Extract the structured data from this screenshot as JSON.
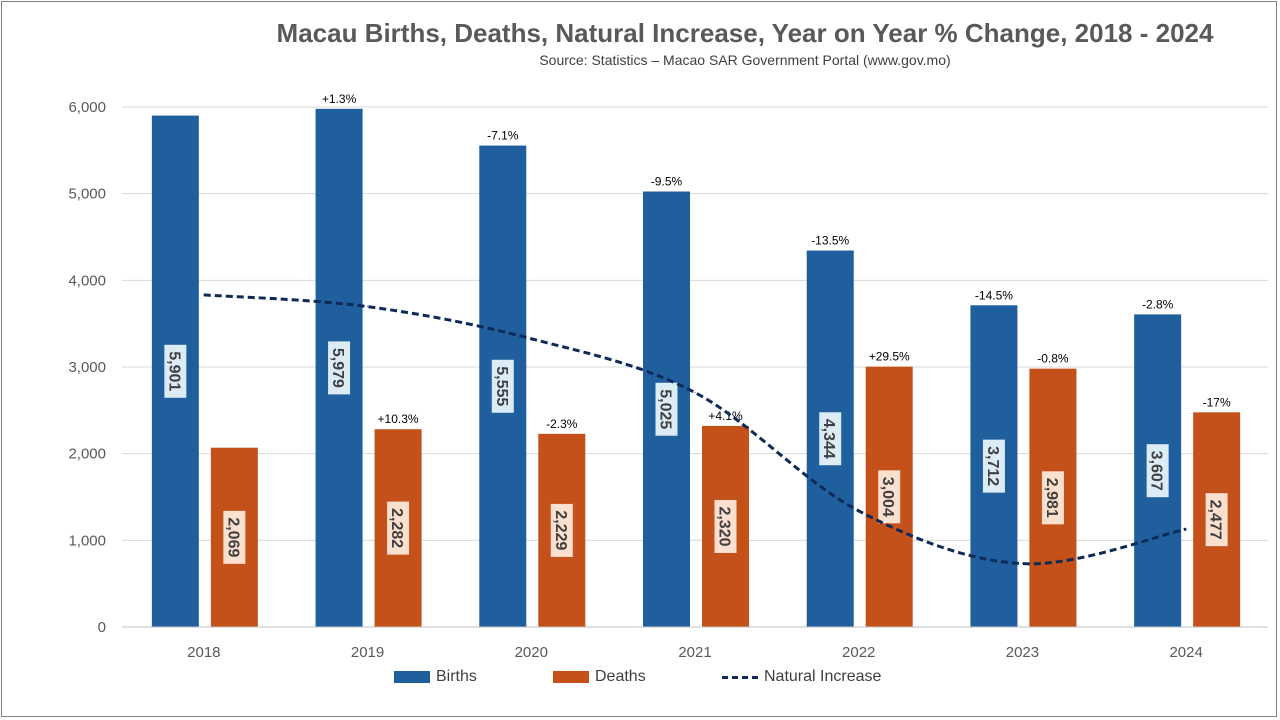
{
  "chart_data": {
    "type": "bar",
    "title": "Macau Births, Deaths, Natural Increase, Year on Year % Change, 2018 - 2024",
    "subtitle": "Source: Statistics – Macao SAR Government Portal (www.gov.mo)",
    "categories": [
      "2018",
      "2019",
      "2020",
      "2021",
      "2022",
      "2023",
      "2024"
    ],
    "ylim": [
      0,
      6000
    ],
    "yticks": [
      "0",
      "1,000",
      "2,000",
      "3,000",
      "4,000",
      "5,000",
      "6,000"
    ],
    "legend_position": "bottom",
    "grid": true,
    "series": [
      {
        "name": "Births",
        "type": "bar",
        "color": "#1f5f9e",
        "values": [
          5901,
          5979,
          5555,
          5025,
          4344,
          3712,
          3607
        ],
        "labels": [
          "5,901",
          "5,979",
          "5,555",
          "5,025",
          "4,344",
          "3,712",
          "3,607"
        ],
        "yoy": [
          "",
          "+1.3%",
          "-7.1%",
          "-9.5%",
          "-13.5%",
          "-14.5%",
          "-2.8%"
        ]
      },
      {
        "name": "Deaths",
        "type": "bar",
        "color": "#c4501a",
        "values": [
          2069,
          2282,
          2229,
          2320,
          3004,
          2981,
          2477
        ],
        "labels": [
          "2,069",
          "2,282",
          "2,229",
          "2,320",
          "3,004",
          "2,981",
          "2,477"
        ],
        "yoy": [
          "",
          "+10.3%",
          "-2.3%",
          "+4.1%",
          "+29.5%",
          "-0.8%",
          "-17%"
        ]
      },
      {
        "name": "Natural Increase",
        "type": "line",
        "style": "dashed",
        "color": "#0e2a57",
        "values": [
          3832,
          3697,
          3326,
          2705,
          1340,
          731,
          1130
        ]
      }
    ]
  }
}
